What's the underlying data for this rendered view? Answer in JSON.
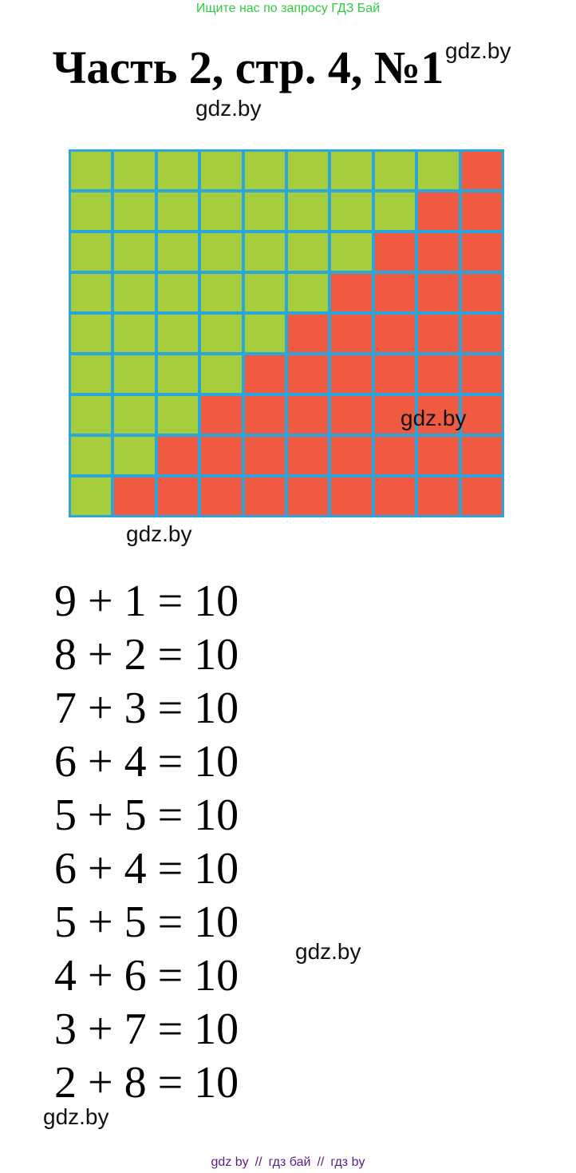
{
  "header": {
    "search_hint": "Ищите нас по запросу ГДЗ Бай",
    "title": "Часть 2, стр. 4, №1"
  },
  "watermarks": [
    "gdz.by",
    "gdz.by",
    "gdz.by",
    "gdz.by",
    "gdz.by",
    "gdz.by"
  ],
  "equations": [
    "9 + 1 = 10",
    "8 + 2 = 10",
    "7 + 3 = 10",
    "6 + 4 = 10",
    "5 + 5 = 10",
    "6 + 4 = 10",
    "5 + 5 = 10",
    "4 + 6 = 10",
    "3 + 7 = 10",
    "2 + 8 = 10"
  ],
  "footer": {
    "links": [
      "gdz by",
      "гдз бай",
      "гдз by"
    ],
    "separator": "//"
  }
}
